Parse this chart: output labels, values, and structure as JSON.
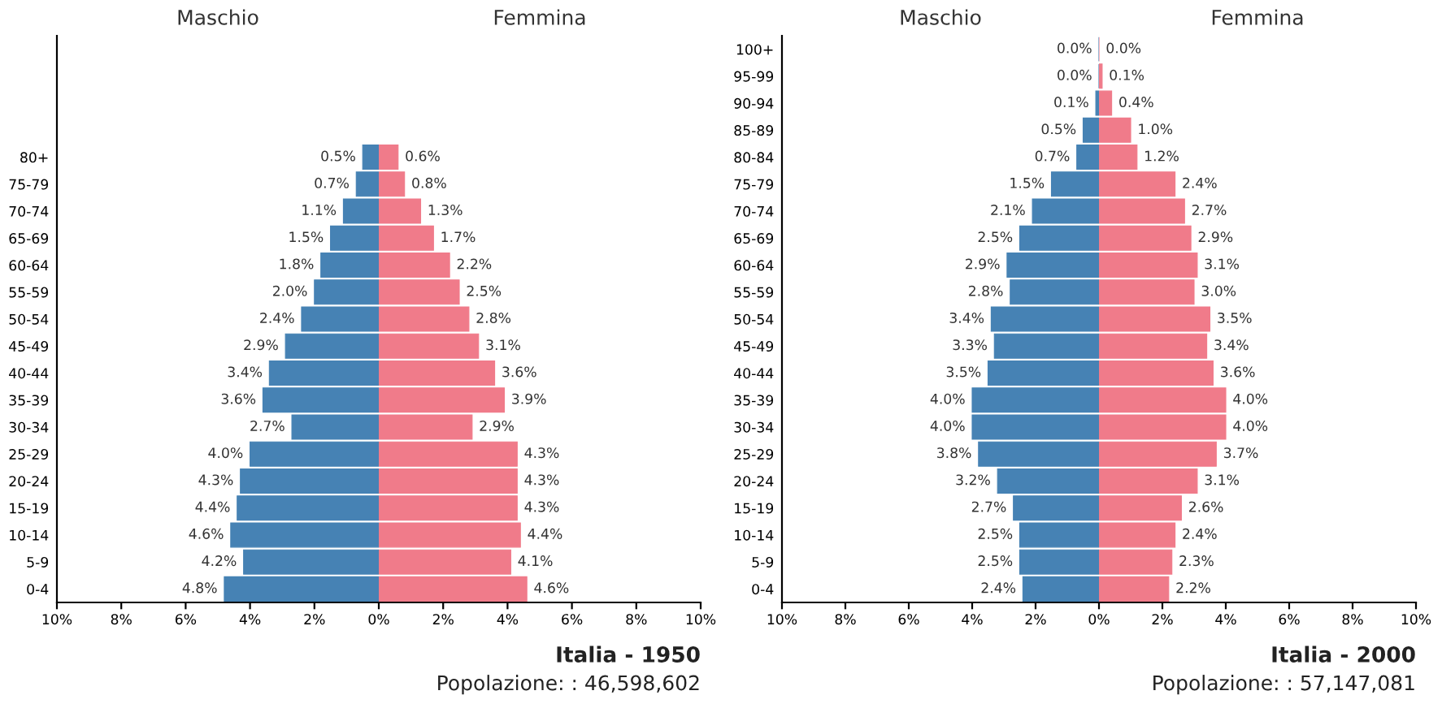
{
  "chart_data": [
    {
      "type": "bar",
      "orientation": "horizontal",
      "categories": [
        null,
        null,
        null,
        null,
        "80+",
        "75-79",
        "70-74",
        "65-69",
        "60-64",
        "55-59",
        "50-54",
        "45-49",
        "40-44",
        "35-39",
        "30-34",
        "25-29",
        "20-24",
        "15-19",
        "10-14",
        "5-9",
        "0-4"
      ],
      "series": [
        {
          "name": "Maschio",
          "color": "#4682b4",
          "values": [
            null,
            null,
            null,
            null,
            0.5,
            0.7,
            1.1,
            1.5,
            1.8,
            2.0,
            2.4,
            2.9,
            3.4,
            3.6,
            2.7,
            4.0,
            4.3,
            4.4,
            4.6,
            4.2,
            4.8
          ],
          "value_labels": [
            null,
            null,
            null,
            null,
            "0.5%",
            "0.7%",
            "1.1%",
            "1.5%",
            "1.8%",
            "2.0%",
            "2.4%",
            "2.9%",
            "3.4%",
            "3.6%",
            "2.7%",
            "4.0%",
            "4.3%",
            "4.4%",
            "4.6%",
            "4.2%",
            "4.8%"
          ]
        }
      ],
      "xlim": [
        10,
        0
      ],
      "xticks": [
        {
          "value": 10,
          "label": "10%"
        },
        {
          "value": 8,
          "label": "8%"
        },
        {
          "value": 6,
          "label": "6%"
        },
        {
          "value": 4,
          "label": "4%"
        },
        {
          "value": 2,
          "label": "2%"
        },
        {
          "value": 0,
          "label": "0%"
        }
      ],
      "grid": false,
      "legend": false
    },
    {
      "type": "bar",
      "orientation": "horizontal",
      "title": "Italia - 1950",
      "subtitle": "Popolazione: : 46,598,602",
      "series": [
        {
          "name": "Femmina",
          "color": "#f07b8a",
          "values": [
            null,
            null,
            null,
            null,
            0.6,
            0.8,
            1.3,
            1.7,
            2.2,
            2.5,
            2.8,
            3.1,
            3.6,
            3.9,
            2.9,
            4.3,
            4.3,
            4.3,
            4.4,
            4.1,
            4.6
          ],
          "value_labels": [
            null,
            null,
            null,
            null,
            "0.6%",
            "0.8%",
            "1.3%",
            "1.7%",
            "2.2%",
            "2.5%",
            "2.8%",
            "3.1%",
            "3.6%",
            "3.9%",
            "2.9%",
            "4.3%",
            "4.3%",
            "4.3%",
            "4.4%",
            "4.1%",
            "4.6%"
          ]
        }
      ],
      "xlim": [
        0,
        10
      ],
      "xticks": [
        {
          "value": 2,
          "label": "2%"
        },
        {
          "value": 4,
          "label": "4%"
        },
        {
          "value": 6,
          "label": "6%"
        },
        {
          "value": 8,
          "label": "8%"
        },
        {
          "value": 10,
          "label": "10%"
        }
      ],
      "tick_labels": "x",
      "grid": false,
      "legend": false
    },
    {
      "type": "bar",
      "orientation": "horizontal",
      "categories": [
        "100+",
        "95-99",
        "90-94",
        "85-89",
        "80-84",
        "75-79",
        "70-74",
        "65-69",
        "60-64",
        "55-59",
        "50-54",
        "45-49",
        "40-44",
        "35-39",
        "30-34",
        "25-29",
        "20-24",
        "15-19",
        "10-14",
        "5-9",
        "0-4"
      ],
      "series": [
        {
          "name": "Maschio",
          "color": "#4682b4",
          "values": [
            0.0,
            0.0,
            0.1,
            0.5,
            0.7,
            1.5,
            2.1,
            2.5,
            2.9,
            2.8,
            3.4,
            3.3,
            3.5,
            4.0,
            4.0,
            3.8,
            3.2,
            2.7,
            2.5,
            2.5,
            2.4
          ],
          "value_labels": [
            "0.0%",
            "0.0%",
            "0.1%",
            "0.5%",
            "0.7%",
            "1.5%",
            "2.1%",
            "2.5%",
            "2.9%",
            "2.8%",
            "3.4%",
            "3.3%",
            "3.5%",
            "4.0%",
            "4.0%",
            "3.8%",
            "3.2%",
            "2.7%",
            "2.5%",
            "2.5%",
            "2.4%"
          ]
        }
      ],
      "xlim": [
        10,
        0
      ],
      "xticks": [
        {
          "value": 10,
          "label": "10%"
        },
        {
          "value": 8,
          "label": "8%"
        },
        {
          "value": 6,
          "label": "6%"
        },
        {
          "value": 4,
          "label": "4%"
        },
        {
          "value": 2,
          "label": "2%"
        },
        {
          "value": 0,
          "label": "0%"
        }
      ],
      "grid": false,
      "legend": false
    },
    {
      "type": "bar",
      "orientation": "horizontal",
      "title": "Italia - 2000",
      "subtitle": "Popolazione: : 57,147,081",
      "series": [
        {
          "name": "Femmina",
          "color": "#f07b8a",
          "values": [
            0.0,
            0.1,
            0.4,
            1.0,
            1.2,
            2.4,
            2.7,
            2.9,
            3.1,
            3.0,
            3.5,
            3.4,
            3.6,
            4.0,
            4.0,
            3.7,
            3.1,
            2.6,
            2.4,
            2.3,
            2.2
          ],
          "value_labels": [
            "0.0%",
            "0.1%",
            "0.4%",
            "1.0%",
            "1.2%",
            "2.4%",
            "2.7%",
            "2.9%",
            "3.1%",
            "3.0%",
            "3.5%",
            "3.4%",
            "3.6%",
            "4.0%",
            "4.0%",
            "3.7%",
            "3.1%",
            "2.6%",
            "2.4%",
            "2.3%",
            "2.2%"
          ]
        }
      ],
      "xlim": [
        0,
        10
      ],
      "xticks": [
        {
          "value": 2,
          "label": "2%"
        },
        {
          "value": 4,
          "label": "4%"
        },
        {
          "value": 6,
          "label": "6%"
        },
        {
          "value": 8,
          "label": "8%"
        },
        {
          "value": 10,
          "label": "10%"
        }
      ],
      "tick_labels": "x",
      "grid": false,
      "legend": false
    }
  ]
}
